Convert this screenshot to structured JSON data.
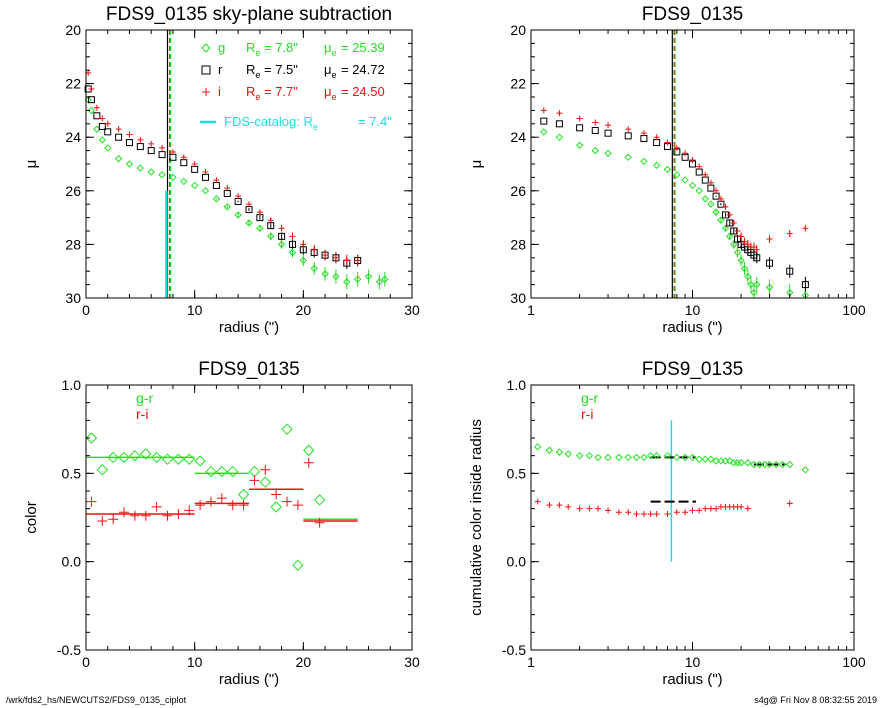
{
  "colors": {
    "g": "#22e022",
    "r": "#000000",
    "i": "#ee1111",
    "catalog": "#22d8e8",
    "gr": "#22e022",
    "ri": "#ee1111"
  },
  "footer": {
    "left": "/wrk/fds2_hs/NEWCUTS2/FDS9_0135_ciplot",
    "right": "s4g@  Fri Nov  8 08:32:55 2019"
  },
  "chart_data": [
    {
      "type": "scatter",
      "title": "FDS9_0135 sky-plane subtraction",
      "xlabel": "radius (\")",
      "ylabel": "μ",
      "xlim": [
        0,
        30
      ],
      "ylim": [
        30,
        20
      ],
      "xscale": "linear",
      "xticks": [
        "0",
        "10",
        "20",
        "30"
      ],
      "yticks": [
        "20",
        "22",
        "24",
        "26",
        "28",
        "30"
      ],
      "vlines": [
        {
          "x": 7.5,
          "color": "r",
          "style": "solid"
        },
        {
          "x": 7.7,
          "color": "i",
          "style": "dash"
        },
        {
          "x": 7.8,
          "color": "g",
          "style": "dash"
        }
      ],
      "catalog_bar": {
        "x": 7.4,
        "from": 26.0,
        "to": 30.0
      },
      "legend": [
        {
          "symbol": "◇",
          "band": "g",
          "re_label": "R",
          "re_sub": "e",
          "re": "=  7.8\"",
          "mu_label": "μ",
          "mu_sub": "e",
          "mu": "= 25.39"
        },
        {
          "symbol": "□",
          "band": "r",
          "re_label": "R",
          "re_sub": "e",
          "re": "=  7.5\"",
          "mu_label": "μ",
          "mu_sub": "e",
          "mu": "= 24.72"
        },
        {
          "symbol": "+",
          "band": "i",
          "re_label": "R",
          "re_sub": "e",
          "re": "=  7.7\"",
          "mu_label": "μ",
          "mu_sub": "e",
          "mu": "= 24.50"
        }
      ],
      "catalog_legend": {
        "text": "FDS-catalog: R",
        "sub": "e",
        "value": "=  7.4\""
      },
      "series": [
        {
          "name": "g",
          "x": [
            0.2,
            0.5,
            1,
            1.5,
            2,
            3,
            4,
            5,
            6,
            7,
            8,
            9,
            10,
            11,
            12,
            13,
            14,
            15,
            16,
            17,
            18,
            19,
            20,
            21,
            22,
            23,
            24,
            25,
            26,
            27,
            27.5
          ],
          "y": [
            22.6,
            23.0,
            23.7,
            24.1,
            24.4,
            24.8,
            25.0,
            25.15,
            25.3,
            25.4,
            25.5,
            25.65,
            25.8,
            26.0,
            26.3,
            26.6,
            26.9,
            27.2,
            27.4,
            27.7,
            28.0,
            28.3,
            28.6,
            28.9,
            29.1,
            29.2,
            29.4,
            29.3,
            29.2,
            29.4,
            29.3
          ]
        },
        {
          "name": "r",
          "x": [
            0.2,
            0.5,
            1,
            1.5,
            2,
            3,
            4,
            5,
            6,
            7,
            8,
            9,
            10,
            11,
            12,
            13,
            14,
            15,
            16,
            17,
            18,
            19,
            20,
            21,
            22,
            23,
            24,
            25
          ],
          "y": [
            22.2,
            22.6,
            23.2,
            23.6,
            23.8,
            24.0,
            24.2,
            24.35,
            24.5,
            24.65,
            24.75,
            24.95,
            25.2,
            25.5,
            25.8,
            26.1,
            26.4,
            26.7,
            27.0,
            27.3,
            27.7,
            28.0,
            28.2,
            28.3,
            28.4,
            28.5,
            28.7,
            28.6
          ]
        },
        {
          "name": "i",
          "x": [
            0.2,
            0.5,
            1,
            1.5,
            2,
            3,
            4,
            5,
            6,
            7,
            8,
            9,
            10,
            11,
            12,
            13,
            14,
            15,
            16,
            17,
            18,
            19,
            20,
            21,
            22,
            23,
            24,
            25
          ],
          "y": [
            21.6,
            22.2,
            22.9,
            23.3,
            23.5,
            23.7,
            23.9,
            24.1,
            24.25,
            24.4,
            24.55,
            24.75,
            25.0,
            25.3,
            25.6,
            25.9,
            26.2,
            26.5,
            26.8,
            27.1,
            27.4,
            27.7,
            28.0,
            28.2,
            28.4,
            28.5,
            28.6,
            28.6
          ]
        }
      ]
    },
    {
      "type": "scatter",
      "title": "FDS9_0135",
      "xlabel": "radius (\")",
      "ylabel": "μ",
      "xlim": [
        1,
        100
      ],
      "ylim": [
        30,
        20
      ],
      "xscale": "log",
      "xticks": [
        "1",
        "10",
        "100"
      ],
      "yticks": [
        "20",
        "22",
        "24",
        "26",
        "28",
        "30"
      ],
      "vlines": [
        {
          "x": 7.5,
          "color": "r",
          "style": "solid"
        },
        {
          "x": 7.7,
          "color": "i",
          "style": "dash"
        },
        {
          "x": 7.8,
          "color": "g",
          "style": "dash"
        }
      ],
      "series": [
        {
          "name": "g",
          "x": [
            1.2,
            1.5,
            2,
            2.5,
            3,
            4,
            5,
            6,
            7,
            8,
            9,
            10,
            11,
            12,
            13,
            14,
            15,
            16,
            17,
            18,
            19,
            20,
            21,
            22,
            23,
            24,
            25,
            30,
            40,
            50
          ],
          "y": [
            23.8,
            24.0,
            24.3,
            24.5,
            24.6,
            24.75,
            24.9,
            25.05,
            25.2,
            25.4,
            25.6,
            25.8,
            26.0,
            26.3,
            26.5,
            26.8,
            27.1,
            27.4,
            27.7,
            28.0,
            28.3,
            28.6,
            28.9,
            29.2,
            29.5,
            29.8,
            29.5,
            29.6,
            29.8,
            29.9
          ]
        },
        {
          "name": "r",
          "x": [
            1.2,
            1.5,
            2,
            2.5,
            3,
            4,
            5,
            6,
            7,
            8,
            9,
            10,
            11,
            12,
            13,
            14,
            15,
            16,
            17,
            18,
            19,
            20,
            21,
            22,
            23,
            24,
            25,
            30,
            40,
            50
          ],
          "y": [
            23.4,
            23.5,
            23.65,
            23.75,
            23.85,
            23.95,
            24.05,
            24.2,
            24.35,
            24.55,
            24.75,
            25.0,
            25.3,
            25.6,
            25.9,
            26.2,
            26.5,
            26.9,
            27.2,
            27.5,
            27.8,
            28.0,
            28.1,
            28.2,
            28.3,
            28.4,
            28.5,
            28.7,
            29.0,
            29.5
          ]
        },
        {
          "name": "i",
          "x": [
            1.2,
            1.5,
            2,
            2.5,
            3,
            4,
            5,
            6,
            7,
            8,
            9,
            10,
            11,
            12,
            13,
            14,
            15,
            16,
            17,
            18,
            19,
            20,
            21,
            22,
            23,
            24,
            25,
            30,
            40,
            50
          ],
          "y": [
            23.0,
            23.1,
            23.3,
            23.45,
            23.55,
            23.7,
            23.85,
            24.0,
            24.2,
            24.4,
            24.6,
            24.85,
            25.1,
            25.4,
            25.7,
            26.0,
            26.3,
            26.6,
            26.9,
            27.2,
            27.5,
            27.7,
            27.9,
            28.0,
            28.1,
            28.1,
            28.2,
            27.8,
            27.6,
            27.4
          ]
        }
      ]
    },
    {
      "type": "scatter",
      "title": "FDS9_0135",
      "xlabel": "radius (\")",
      "ylabel": "color",
      "xlim": [
        0,
        30
      ],
      "ylim": [
        -0.5,
        1.0
      ],
      "xscale": "linear",
      "xticks": [
        "0",
        "10",
        "20",
        "30"
      ],
      "yticks": [
        "-0.5",
        "0.0",
        "0.5",
        "1.0"
      ],
      "legend": [
        {
          "name": "g-r",
          "color": "gr"
        },
        {
          "name": "r-i",
          "color": "ri"
        }
      ],
      "series": [
        {
          "name": "g-r",
          "marker": "diamond",
          "x": [
            0.5,
            1.5,
            2.5,
            3.5,
            4.5,
            5.5,
            6.5,
            7.5,
            8.5,
            9.5,
            10.5,
            11.5,
            12.5,
            13.5,
            14.5,
            15.5,
            16.5,
            17.5,
            18.5,
            19.5,
            20.5,
            21.5
          ],
          "y": [
            0.7,
            0.52,
            0.59,
            0.59,
            0.6,
            0.61,
            0.59,
            0.58,
            0.58,
            0.58,
            0.57,
            0.51,
            0.51,
            0.51,
            0.38,
            0.51,
            0.45,
            0.31,
            0.75,
            -0.02,
            0.63,
            0.35
          ]
        },
        {
          "name": "r-i",
          "marker": "plus",
          "x": [
            0.5,
            1.5,
            2.5,
            3.5,
            4.5,
            5.5,
            6.5,
            7.5,
            8.5,
            9.5,
            10.5,
            11.5,
            12.5,
            13.5,
            14.5,
            15.5,
            16.5,
            17.5,
            18.5,
            19.5,
            20.5,
            21.5
          ],
          "y": [
            0.34,
            0.23,
            0.24,
            0.28,
            0.26,
            0.26,
            0.31,
            0.26,
            0.27,
            0.29,
            0.32,
            0.34,
            0.36,
            0.32,
            0.32,
            0.46,
            0.52,
            0.38,
            0.34,
            0.32,
            0.56,
            0.22
          ]
        }
      ],
      "segments": [
        {
          "series": "g-r",
          "x0": 0,
          "x1": 10,
          "y": 0.59
        },
        {
          "series": "g-r",
          "x0": 10,
          "x1": 15,
          "y": 0.5
        },
        {
          "series": "g-r",
          "x0": 15,
          "x1": 20,
          "y": 0.41
        },
        {
          "series": "g-r",
          "x0": 20,
          "x1": 25,
          "y": 0.24
        },
        {
          "series": "r-i",
          "x0": 0,
          "x1": 10,
          "y": 0.27
        },
        {
          "series": "r-i",
          "x0": 10,
          "x1": 15,
          "y": 0.33
        },
        {
          "series": "r-i",
          "x0": 15,
          "x1": 20,
          "y": 0.41
        },
        {
          "series": "r-i",
          "x0": 20,
          "x1": 25,
          "y": 0.23
        }
      ]
    },
    {
      "type": "scatter",
      "title": "FDS9_0135",
      "xlabel": "radius (\")",
      "ylabel": "cumulative color inside radius",
      "xlim": [
        1,
        100
      ],
      "ylim": [
        -0.5,
        1.0
      ],
      "xscale": "log",
      "xticks": [
        "1",
        "10",
        "100"
      ],
      "yticks": [
        "-0.5",
        "0.0",
        "0.5",
        "1.0"
      ],
      "legend": [
        {
          "name": "g-r",
          "color": "gr"
        },
        {
          "name": "r-i",
          "color": "ri"
        }
      ],
      "catalog_vline": {
        "x": 7.4,
        "from": 0.0,
        "to": 0.8
      },
      "series": [
        {
          "name": "g-r",
          "marker": "diamond",
          "x": [
            1.1,
            1.3,
            1.5,
            1.7,
            2,
            2.3,
            2.6,
            3,
            3.5,
            4,
            4.5,
            5,
            5.5,
            6,
            7,
            8,
            9,
            10,
            11,
            12,
            13,
            14,
            15,
            16,
            17,
            18,
            19,
            20,
            22,
            24,
            26,
            28,
            30,
            33,
            36,
            40,
            50
          ],
          "y": [
            0.65,
            0.63,
            0.62,
            0.61,
            0.6,
            0.6,
            0.59,
            0.59,
            0.59,
            0.59,
            0.59,
            0.59,
            0.6,
            0.6,
            0.6,
            0.59,
            0.59,
            0.59,
            0.58,
            0.58,
            0.58,
            0.57,
            0.57,
            0.57,
            0.57,
            0.56,
            0.56,
            0.56,
            0.56,
            0.55,
            0.55,
            0.55,
            0.55,
            0.55,
            0.55,
            0.55,
            0.52
          ]
        },
        {
          "name": "r-i",
          "marker": "plus",
          "x": [
            1.1,
            1.3,
            1.5,
            1.7,
            2,
            2.3,
            2.6,
            3,
            3.5,
            4,
            4.5,
            5,
            5.5,
            6,
            7,
            8,
            9,
            10,
            11,
            12,
            13,
            14,
            15,
            16,
            17,
            18,
            19,
            20,
            22,
            40
          ],
          "y": [
            0.34,
            0.32,
            0.32,
            0.31,
            0.3,
            0.3,
            0.3,
            0.29,
            0.28,
            0.28,
            0.27,
            0.27,
            0.27,
            0.27,
            0.27,
            0.28,
            0.28,
            0.29,
            0.29,
            0.3,
            0.3,
            0.3,
            0.31,
            0.31,
            0.31,
            0.31,
            0.31,
            0.31,
            0.3,
            0.33
          ]
        }
      ],
      "hbars": [
        {
          "x0": 5.5,
          "x1": 10.5,
          "y": 0.59
        },
        {
          "x0": 24,
          "x1": 38,
          "y": 0.55
        },
        {
          "x0": 5.5,
          "x1": 10.5,
          "y": 0.34
        }
      ]
    }
  ]
}
